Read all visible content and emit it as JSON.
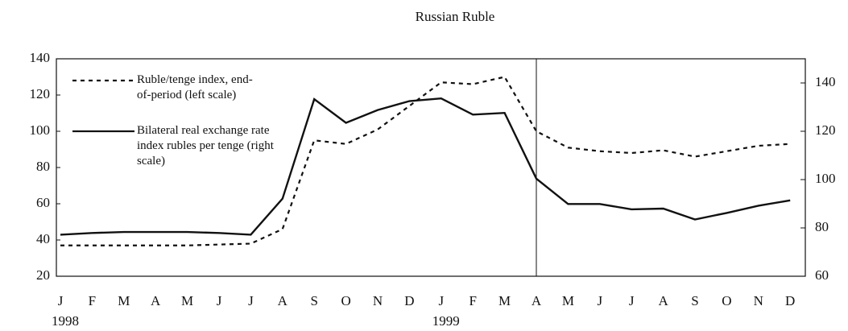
{
  "chart_data": {
    "type": "line",
    "title": "Russian Ruble",
    "categories": [
      "J",
      "F",
      "M",
      "A",
      "M",
      "J",
      "J",
      "A",
      "S",
      "O",
      "N",
      "D",
      "J",
      "F",
      "M",
      "A",
      "M",
      "J",
      "J",
      "A",
      "S",
      "O",
      "N",
      "D"
    ],
    "x_group_labels": [
      "1998",
      "1999"
    ],
    "ylim": [
      20,
      140
    ],
    "yticks": [
      20,
      40,
      60,
      80,
      100,
      120,
      140
    ],
    "y2lim": [
      60,
      150
    ],
    "y2ticks": [
      60,
      80,
      100,
      120,
      140
    ],
    "series": [
      {
        "name": "Ruble/tenge index, end-of-period (left scale)",
        "color": "#111",
        "dash": true,
        "values": [
          37,
          37,
          37,
          37,
          37,
          37.5,
          38,
          46,
          95,
          93,
          101,
          114,
          127,
          126,
          130,
          100,
          91,
          89,
          88,
          89.5,
          86,
          89,
          92,
          93
        ]
      },
      {
        "name": "Bilateral real exchange rate index rubles per tenge (right scale)",
        "color": "#111",
        "dash": false,
        "axis": "y2",
        "values": [
          77.2,
          77.9,
          78.3,
          78.3,
          78.3,
          77.9,
          77.2,
          92.1,
          133.3,
          123.5,
          128.8,
          132.5,
          133.6,
          126.9,
          127.6,
          100.4,
          89.9,
          89.9,
          87.7,
          88,
          83.5,
          86.2,
          89.2,
          91.4
        ]
      }
    ]
  }
}
